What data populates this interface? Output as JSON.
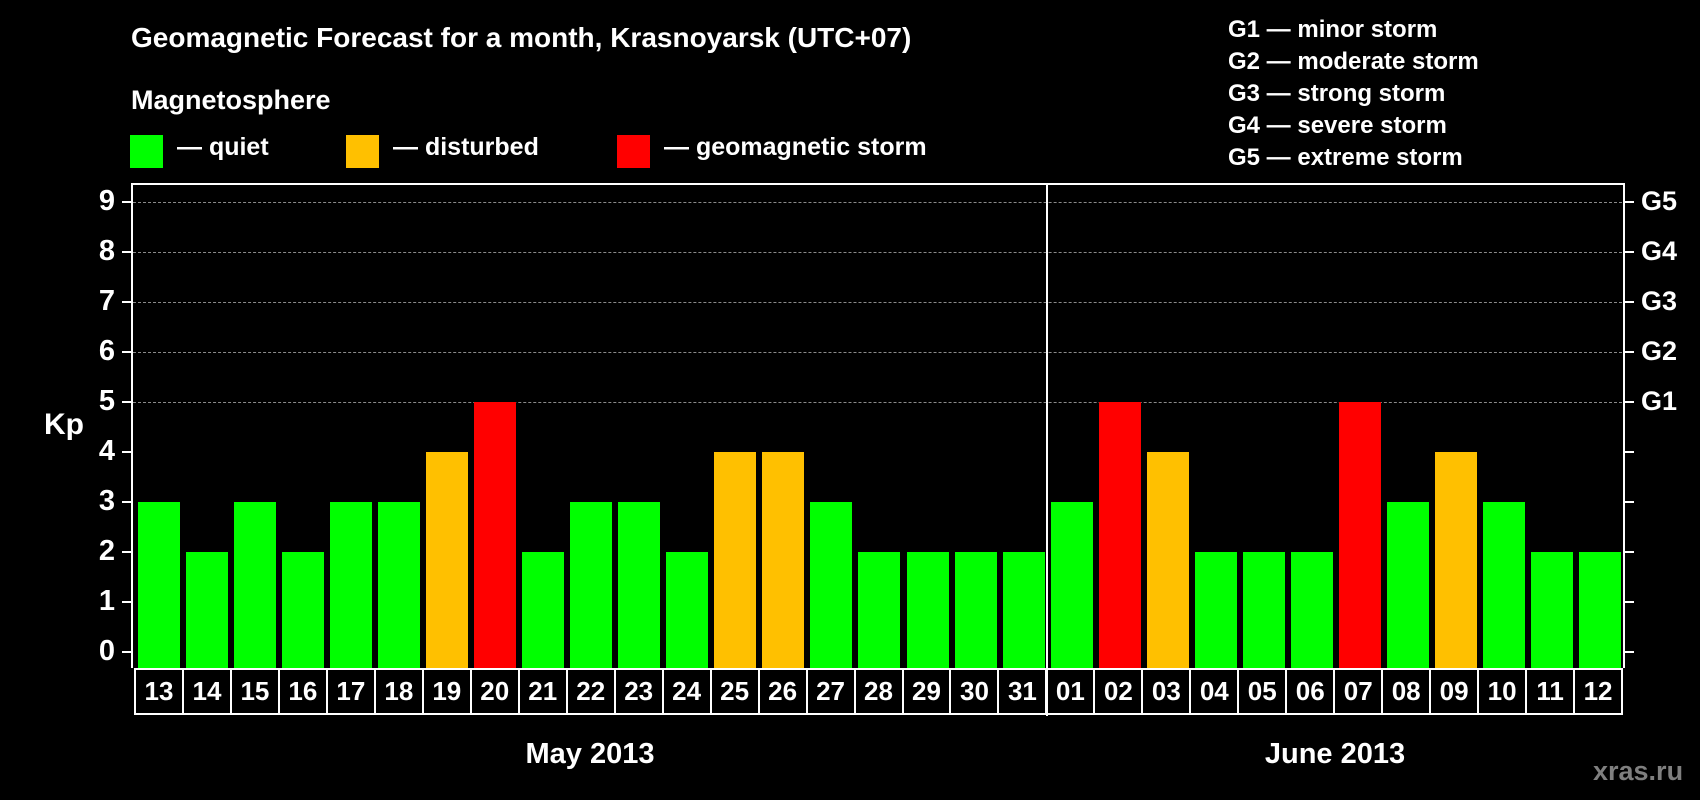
{
  "header": {
    "title": "Geomagnetic Forecast for a month, Krasnoyarsk (UTC+07)",
    "subtitle": "Magnetosphere"
  },
  "legend": [
    {
      "label": "— quiet",
      "color": "#00ff00"
    },
    {
      "label": "— disturbed",
      "color": "#ffc000"
    },
    {
      "label": "— geomagnetic storm",
      "color": "#ff0000"
    }
  ],
  "storm_scale": [
    "G1 — minor storm",
    "G2 — moderate storm",
    "G3 — strong storm",
    "G4 — severe storm",
    "G5 — extreme storm"
  ],
  "axis": {
    "ylabel": "Kp",
    "yticks": [
      "0",
      "1",
      "2",
      "3",
      "4",
      "5",
      "6",
      "7",
      "8",
      "9"
    ],
    "right_ticks": [
      {
        "value": 5,
        "label": "G1"
      },
      {
        "value": 6,
        "label": "G2"
      },
      {
        "value": 7,
        "label": "G3"
      },
      {
        "value": 8,
        "label": "G4"
      },
      {
        "value": 9,
        "label": "G5"
      }
    ]
  },
  "months": [
    {
      "label": "May 2013"
    },
    {
      "label": "June 2013"
    }
  ],
  "watermark": "xras.ru",
  "colors": {
    "quiet": "#00ff00",
    "disturbed": "#ffc000",
    "storm": "#ff0000",
    "grid": "#8a8a8a",
    "background": "#000000"
  },
  "chart_data": {
    "type": "bar",
    "title": "Geomagnetic Forecast for a month, Krasnoyarsk (UTC+07)",
    "subtitle": "Magnetosphere",
    "xlabel": "May 2013 / June 2013",
    "ylabel": "Kp",
    "ylim": [
      0,
      9
    ],
    "grid": true,
    "legend_position": "top",
    "categories": [
      "13",
      "14",
      "15",
      "16",
      "17",
      "18",
      "19",
      "20",
      "21",
      "22",
      "23",
      "24",
      "25",
      "26",
      "27",
      "28",
      "29",
      "30",
      "31",
      "01",
      "02",
      "03",
      "04",
      "05",
      "06",
      "07",
      "08",
      "09",
      "10",
      "11",
      "12"
    ],
    "values": [
      3,
      2,
      3,
      2,
      3,
      3,
      4,
      5,
      2,
      3,
      3,
      2,
      4,
      4,
      3,
      2,
      2,
      2,
      2,
      3,
      5,
      4,
      2,
      2,
      2,
      5,
      3,
      4,
      3,
      2,
      2
    ],
    "status": [
      "quiet",
      "quiet",
      "quiet",
      "quiet",
      "quiet",
      "quiet",
      "disturbed",
      "storm",
      "quiet",
      "quiet",
      "quiet",
      "quiet",
      "disturbed",
      "disturbed",
      "quiet",
      "quiet",
      "quiet",
      "quiet",
      "quiet",
      "quiet",
      "storm",
      "disturbed",
      "quiet",
      "quiet",
      "quiet",
      "storm",
      "quiet",
      "disturbed",
      "quiet",
      "quiet",
      "quiet"
    ],
    "secondary_axis": {
      "5": "G1",
      "6": "G2",
      "7": "G3",
      "8": "G4",
      "9": "G5"
    }
  }
}
